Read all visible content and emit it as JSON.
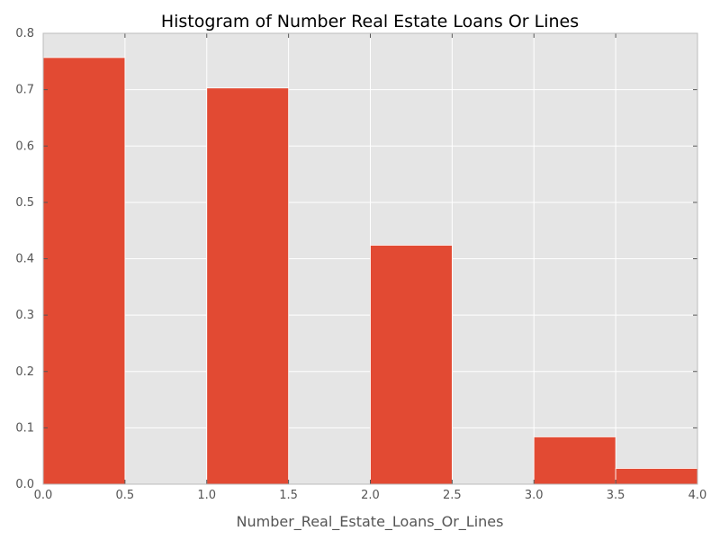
{
  "chart_data": {
    "type": "bar",
    "title": "Histogram of Number Real Estate Loans Or Lines",
    "xlabel": "Number_Real_Estate_Loans_Or_Lines",
    "ylabel": "",
    "xlim": [
      0.0,
      4.0
    ],
    "ylim": [
      0.0,
      0.8
    ],
    "x_ticks": [
      "0.0",
      "0.5",
      "1.0",
      "1.5",
      "2.0",
      "2.5",
      "3.0",
      "3.5",
      "4.0"
    ],
    "y_ticks": [
      "0.0",
      "0.1",
      "0.2",
      "0.3",
      "0.4",
      "0.5",
      "0.6",
      "0.7",
      "0.8"
    ],
    "bins": [
      {
        "x0": 0.0,
        "x1": 0.5,
        "value": 0.757
      },
      {
        "x0": 0.5,
        "x1": 1.0,
        "value": 0.0
      },
      {
        "x0": 1.0,
        "x1": 1.5,
        "value": 0.703
      },
      {
        "x0": 1.5,
        "x1": 2.0,
        "value": 0.0
      },
      {
        "x0": 2.0,
        "x1": 2.5,
        "value": 0.424
      },
      {
        "x0": 2.5,
        "x1": 3.0,
        "value": 0.0
      },
      {
        "x0": 3.0,
        "x1": 3.5,
        "value": 0.084
      },
      {
        "x0": 3.5,
        "x1": 4.0,
        "value": 0.028
      }
    ],
    "bar_color": "#E24A33",
    "plot_background": "#E5E5E5",
    "grid_color": "#FFFFFF",
    "grid": true,
    "legend": "none"
  }
}
